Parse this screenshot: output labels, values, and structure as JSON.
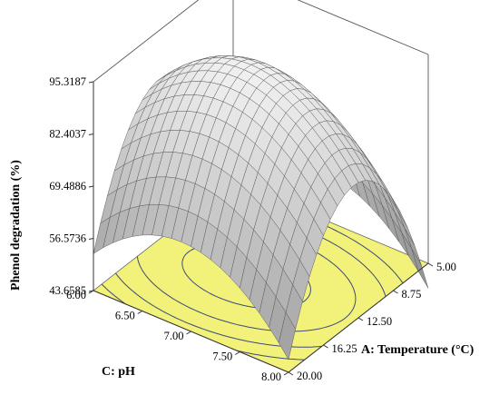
{
  "chart_data": {
    "type": "surface",
    "zlabel": "Phenol degradation (%)",
    "xlabel": "A: Temperature (°C)",
    "ylabel": "C: pH",
    "z_ticks": [
      "43.6585",
      "56.5736",
      "69.4886",
      "82.4037",
      "95.3187"
    ],
    "x_ticks": [
      "5.00",
      "8.75",
      "12.50",
      "16.25",
      "20.00"
    ],
    "y_ticks": [
      "6.00",
      "6.50",
      "7.00",
      "7.50",
      "8.00"
    ],
    "xlim": [
      5,
      20
    ],
    "ylim": [
      6,
      8
    ],
    "zlim": [
      43.6585,
      95.3187
    ],
    "surface_max": 95.3,
    "contour_levels": [
      60,
      70,
      80,
      90
    ],
    "floor_color": "#f2f27a",
    "surface_color": "#c8c8c8"
  }
}
